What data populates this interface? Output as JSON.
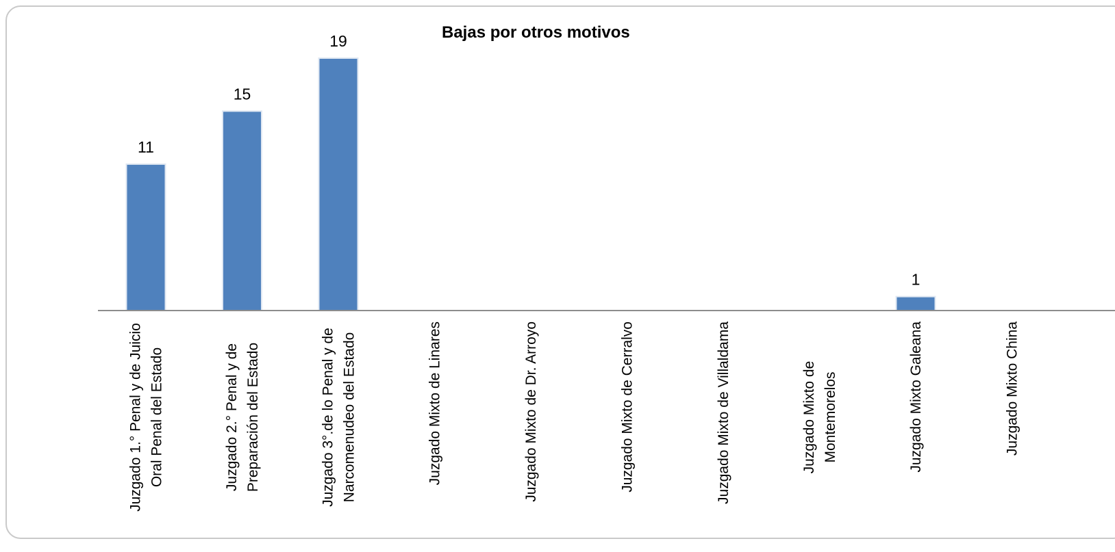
{
  "chart_data": {
    "type": "bar",
    "title": "Bajas por otros motivos",
    "xlabel": "",
    "ylabel": "",
    "categories": [
      [
        "Juzgado 1.° Penal y de Juicio",
        "Oral Penal del Estado"
      ],
      [
        "Juzgado 2.° Penal y de",
        "Preparación del Estado"
      ],
      [
        "Juzgado 3°.de lo Penal y de",
        "Narcomenudeo del Estado"
      ],
      [
        "Juzgado Mixto de Linares"
      ],
      [
        "Juzgado Mixto de  Dr. Arroyo"
      ],
      [
        "Juzgado Mixto de  Cerralvo"
      ],
      [
        "Juzgado Mixto de  Villaldama"
      ],
      [
        "Juzgado Mixto de",
        "Montemorelos"
      ],
      [
        "Juzgado Mixto Galeana"
      ],
      [
        "Juzgado Mixto China"
      ]
    ],
    "values": [
      11,
      15,
      19,
      0,
      0,
      0,
      0,
      0,
      1,
      0
    ],
    "data_labels": [
      "11",
      "15",
      "19",
      "",
      "",
      "",
      "",
      "",
      "1",
      ""
    ],
    "ylim": [
      0,
      19
    ],
    "grid": false,
    "bar_color": "#4f81bd"
  }
}
